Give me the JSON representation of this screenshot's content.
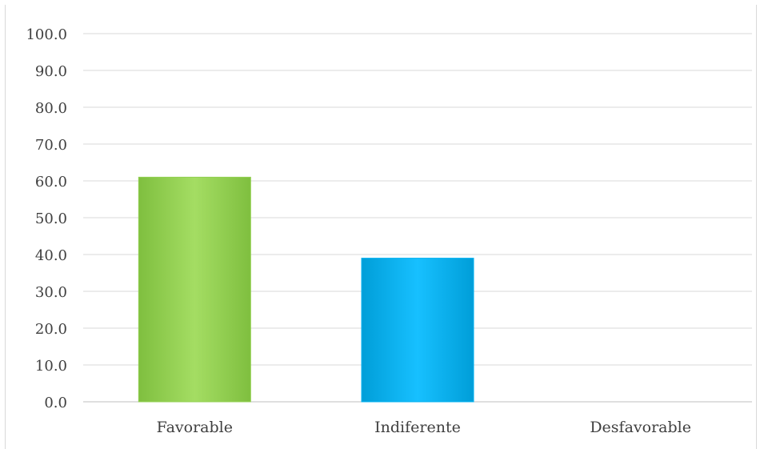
{
  "chart_data": {
    "type": "bar",
    "categories": [
      "Favorable",
      "Indiferente",
      "Desfavorable"
    ],
    "values": [
      61.0,
      39.0,
      0.0
    ],
    "colors": [
      "#92D050",
      "#00B0F0",
      "#808080"
    ],
    "ylim": [
      0,
      100
    ],
    "yticks": [
      "0.0",
      "10.0",
      "20.0",
      "30.0",
      "40.0",
      "50.0",
      "60.0",
      "70.0",
      "80.0",
      "90.0",
      "100.0"
    ],
    "grid": true,
    "legend": "none"
  }
}
